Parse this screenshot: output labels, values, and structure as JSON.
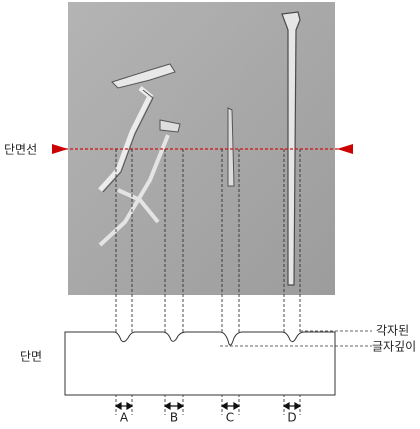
{
  "labels": {
    "section_line": "단면선",
    "section": "단면",
    "depth": [
      "각자된",
      "글자깊이"
    ],
    "markers": [
      "A",
      "B",
      "C",
      "D"
    ]
  }
}
